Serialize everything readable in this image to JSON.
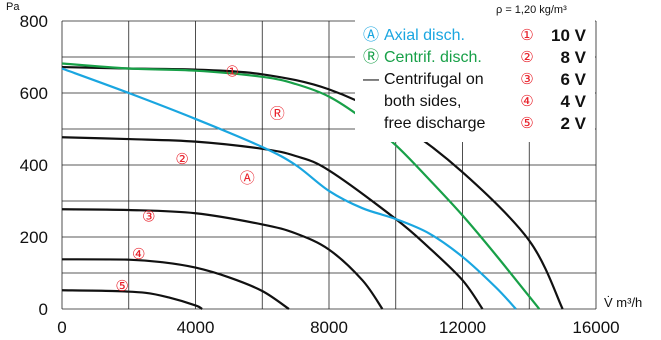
{
  "chart_data": {
    "type": "line",
    "title": "",
    "ylabel": "Pa",
    "xlabel": "V̇ m³/h",
    "density_note": "ρ = 1,20 kg/m³",
    "xlim": [
      0,
      16000
    ],
    "ylim": [
      0,
      800
    ],
    "x_ticks": [
      0,
      4000,
      8000,
      12000,
      16000
    ],
    "y_ticks": [
      0,
      200,
      400,
      600,
      800
    ],
    "grid": true,
    "grid_x": [
      0,
      2000,
      4000,
      6000,
      8000,
      10000,
      12000,
      14000,
      16000
    ],
    "grid_y": [
      0,
      100,
      200,
      300,
      400,
      500,
      600,
      700,
      800
    ],
    "legend_placement": "top-right",
    "legend": [
      {
        "symbol": "Ⓐ",
        "text": "Axial disch.",
        "color": "#1aa6e0"
      },
      {
        "symbol": "Ⓡ",
        "text": "Centrif. disch.",
        "color": "#18a048"
      },
      {
        "symbol": "—",
        "text": "Centrifugal on",
        "color": "#111111"
      },
      {
        "symbol": "",
        "text": "both sides,",
        "color": "#111111"
      },
      {
        "symbol": "",
        "text": "free discharge",
        "color": "#111111"
      }
    ],
    "voltages": [
      {
        "mark": "①",
        "label": "10 V"
      },
      {
        "mark": "②",
        "label": "8 V"
      },
      {
        "mark": "③",
        "label": "6 V"
      },
      {
        "mark": "④",
        "label": "4 V"
      },
      {
        "mark": "⑤",
        "label": "2 V"
      }
    ],
    "series": [
      {
        "kind": "centrifugal",
        "color": "#111111",
        "points": [
          [
            0,
            672
          ],
          [
            2000,
            668
          ],
          [
            4000,
            665
          ],
          [
            6000,
            652
          ],
          [
            8000,
            610
          ],
          [
            10000,
            520
          ],
          [
            12000,
            380
          ],
          [
            14000,
            190
          ],
          [
            15000,
            0
          ]
        ]
      },
      {
        "kind": "centrifugal",
        "color": "#111111",
        "points": [
          [
            0,
            477
          ],
          [
            2000,
            472
          ],
          [
            4000,
            465
          ],
          [
            6000,
            445
          ],
          [
            7000,
            425
          ],
          [
            8000,
            385
          ],
          [
            10000,
            250
          ],
          [
            11000,
            170
          ],
          [
            12000,
            80
          ],
          [
            12600,
            0
          ]
        ]
      },
      {
        "kind": "centrifugal",
        "color": "#111111",
        "points": [
          [
            0,
            277
          ],
          [
            2000,
            275
          ],
          [
            4000,
            266
          ],
          [
            6000,
            235
          ],
          [
            7000,
            210
          ],
          [
            8000,
            165
          ],
          [
            9000,
            80
          ],
          [
            9600,
            0
          ]
        ]
      },
      {
        "kind": "centrifugal",
        "color": "#111111",
        "points": [
          [
            0,
            138
          ],
          [
            2000,
            137
          ],
          [
            3000,
            130
          ],
          [
            4000,
            115
          ],
          [
            5000,
            88
          ],
          [
            6000,
            50
          ],
          [
            6800,
            0
          ]
        ]
      },
      {
        "kind": "centrifugal",
        "color": "#111111",
        "points": [
          [
            0,
            52
          ],
          [
            1500,
            50
          ],
          [
            2500,
            45
          ],
          [
            3200,
            32
          ],
          [
            4000,
            10
          ],
          [
            4200,
            0
          ]
        ]
      },
      {
        "kind": "axial",
        "color": "#1aa6e0",
        "points": [
          [
            0,
            668
          ],
          [
            2000,
            600
          ],
          [
            4000,
            528
          ],
          [
            6000,
            450
          ],
          [
            7000,
            400
          ],
          [
            8000,
            328
          ],
          [
            9000,
            280
          ],
          [
            10000,
            250
          ],
          [
            11000,
            210
          ],
          [
            12000,
            145
          ],
          [
            13000,
            60
          ],
          [
            13600,
            0
          ]
        ]
      },
      {
        "kind": "centrifugal-discharge",
        "color": "#18a048",
        "points": [
          [
            0,
            682
          ],
          [
            2000,
            668
          ],
          [
            4000,
            662
          ],
          [
            6000,
            645
          ],
          [
            7000,
            625
          ],
          [
            8000,
            590
          ],
          [
            9000,
            530
          ],
          [
            10000,
            455
          ],
          [
            11000,
            360
          ],
          [
            12000,
            260
          ],
          [
            13000,
            150
          ],
          [
            14300,
            0
          ]
        ]
      }
    ],
    "annotations": [
      {
        "text": "①",
        "x": 5100,
        "y": 658,
        "color": "#e8202a"
      },
      {
        "text": "②",
        "x": 3600,
        "y": 415,
        "color": "#e8202a"
      },
      {
        "text": "③",
        "x": 2600,
        "y": 256,
        "color": "#e8202a"
      },
      {
        "text": "④",
        "x": 2300,
        "y": 152,
        "color": "#e8202a"
      },
      {
        "text": "⑤",
        "x": 1800,
        "y": 62,
        "color": "#e8202a"
      },
      {
        "text": "Ⓐ",
        "x": 5550,
        "y": 363,
        "color": "#1aa6e0"
      },
      {
        "text": "Ⓡ",
        "x": 6450,
        "y": 541,
        "color": "#18a048"
      }
    ]
  }
}
